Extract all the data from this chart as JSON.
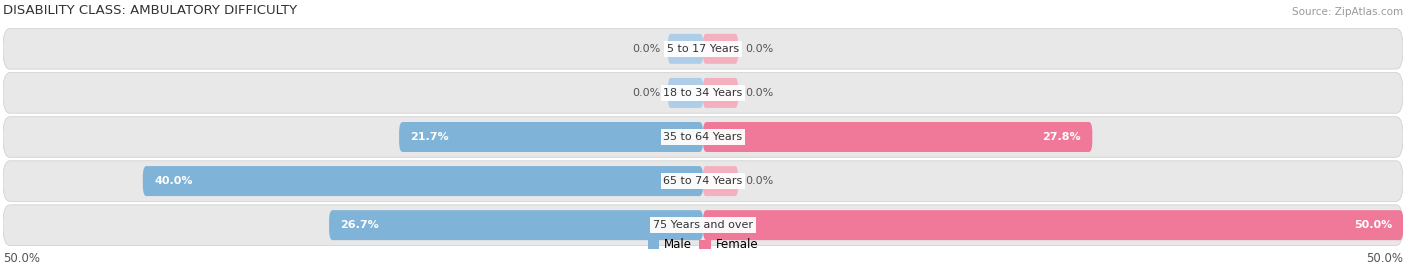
{
  "title": "DISABILITY CLASS: AMBULATORY DIFFICULTY",
  "source_text": "Source: ZipAtlas.com",
  "categories": [
    "5 to 17 Years",
    "18 to 34 Years",
    "35 to 64 Years",
    "65 to 74 Years",
    "75 Years and over"
  ],
  "male_values": [
    0.0,
    0.0,
    21.7,
    40.0,
    26.7
  ],
  "female_values": [
    0.0,
    0.0,
    27.8,
    0.0,
    50.0
  ],
  "max_val": 50.0,
  "male_color": "#7fb3d8",
  "female_color": "#f07898",
  "male_stub_color": "#aecde8",
  "female_stub_color": "#f5b0c0",
  "row_bg_color": "#e8e8e8",
  "label_fontsize": 8.0,
  "title_fontsize": 9.5,
  "source_fontsize": 7.5,
  "axis_label_fontsize": 8.5,
  "legend_fontsize": 8.5,
  "x_left_label": "50.0%",
  "x_right_label": "50.0%",
  "stub_size": 2.5
}
